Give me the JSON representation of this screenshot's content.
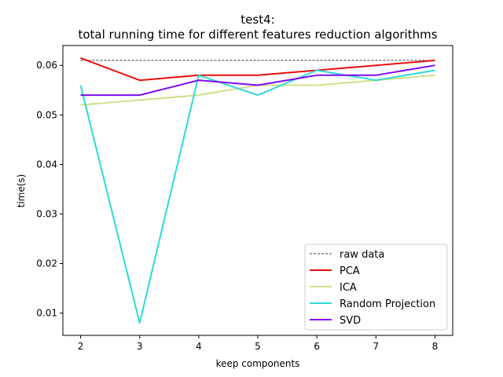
{
  "chart_data": {
    "type": "line",
    "title": "test4:",
    "subtitle": "total running time for different features reduction algorithms",
    "xlabel": "keep components",
    "ylabel": "time(s)",
    "x": [
      2,
      3,
      4,
      5,
      6,
      7,
      8
    ],
    "xticks": [
      "2",
      "3",
      "4",
      "5",
      "6",
      "7",
      "8"
    ],
    "yticks": [
      "0.01",
      "0.02",
      "0.03",
      "0.04",
      "0.05",
      "0.06"
    ],
    "xlim": [
      1.7,
      8.3
    ],
    "ylim": [
      0.0055,
      0.064
    ],
    "grid": false,
    "legend_position": "lower right",
    "series": [
      {
        "name": "raw data",
        "values": [
          0.061,
          0.061,
          0.061,
          0.061,
          0.061,
          0.061,
          0.061
        ],
        "color": "#000000",
        "style": "dashed"
      },
      {
        "name": "PCA",
        "values": [
          0.0615,
          0.057,
          0.058,
          0.058,
          0.059,
          0.06,
          0.061
        ],
        "color": "#e8110c",
        "style": "solid"
      },
      {
        "name": "ICA",
        "values": [
          0.052,
          0.053,
          0.054,
          0.056,
          0.056,
          0.057,
          0.058
        ],
        "color": "#d3df8a",
        "style": "solid"
      },
      {
        "name": "Random Projection",
        "values": [
          0.056,
          0.008,
          0.058,
          0.054,
          0.059,
          0.057,
          0.059
        ],
        "color": "#2ddad8",
        "style": "solid"
      },
      {
        "name": "SVD",
        "values": [
          0.054,
          0.054,
          0.057,
          0.056,
          0.058,
          0.058,
          0.06
        ],
        "color": "#7e0cf0",
        "style": "solid"
      }
    ]
  }
}
